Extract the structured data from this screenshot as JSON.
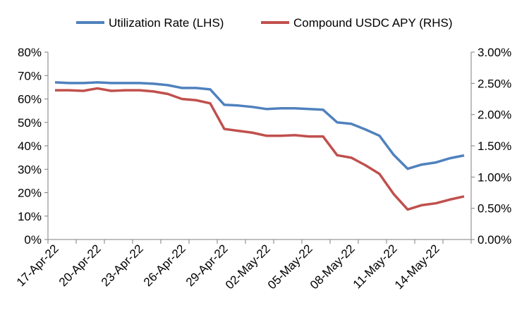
{
  "chart_data": {
    "type": "line",
    "title": "",
    "xlabel": "",
    "ylabel": "",
    "grid": false,
    "legend_position": "top",
    "x_tick_labels": [
      "17-Apr-22",
      "20-Apr-22",
      "23-Apr-22",
      "26-Apr-22",
      "29-Apr-22",
      "02-May-22",
      "05-May-22",
      "08-May-22",
      "11-May-22",
      "14-May-22"
    ],
    "x": [
      "17-Apr-22",
      "18-Apr-22",
      "19-Apr-22",
      "20-Apr-22",
      "21-Apr-22",
      "22-Apr-22",
      "23-Apr-22",
      "24-Apr-22",
      "25-Apr-22",
      "26-Apr-22",
      "27-Apr-22",
      "28-Apr-22",
      "29-Apr-22",
      "30-Apr-22",
      "01-May-22",
      "02-May-22",
      "03-May-22",
      "04-May-22",
      "05-May-22",
      "06-May-22",
      "07-May-22",
      "08-May-22",
      "09-May-22",
      "10-May-22",
      "11-May-22",
      "12-May-22",
      "13-May-22",
      "14-May-22",
      "15-May-22",
      "16-May-22"
    ],
    "y_left": {
      "range": [
        0,
        80
      ],
      "ticks": [
        "0%",
        "10%",
        "20%",
        "30%",
        "40%",
        "50%",
        "60%",
        "70%",
        "80%"
      ]
    },
    "y_right": {
      "range": [
        0,
        3
      ],
      "ticks": [
        "0.00%",
        "0.50%",
        "1.00%",
        "1.50%",
        "2.00%",
        "2.50%",
        "3.00%"
      ]
    },
    "series": [
      {
        "name": "Utilization Rate (LHS)",
        "axis": "left",
        "color": "#4f81bd",
        "values": [
          67.1,
          66.8,
          66.8,
          67.1,
          66.8,
          66.8,
          66.8,
          66.5,
          65.9,
          64.7,
          64.7,
          64.1,
          57.5,
          57.2,
          56.6,
          55.7,
          56.0,
          56.0,
          55.7,
          55.4,
          50.0,
          49.4,
          47.0,
          44.3,
          36.2,
          30.2,
          32.0,
          32.9,
          34.7,
          35.9
        ]
      },
      {
        "name": "Compound USDC APY (RHS)",
        "axis": "right",
        "color": "#c0504d",
        "values": [
          2.39,
          2.39,
          2.38,
          2.42,
          2.38,
          2.39,
          2.39,
          2.37,
          2.33,
          2.25,
          2.23,
          2.18,
          1.77,
          1.74,
          1.71,
          1.66,
          1.66,
          1.67,
          1.65,
          1.65,
          1.35,
          1.31,
          1.19,
          1.05,
          0.73,
          0.48,
          0.55,
          0.58,
          0.64,
          0.69
        ]
      }
    ]
  }
}
